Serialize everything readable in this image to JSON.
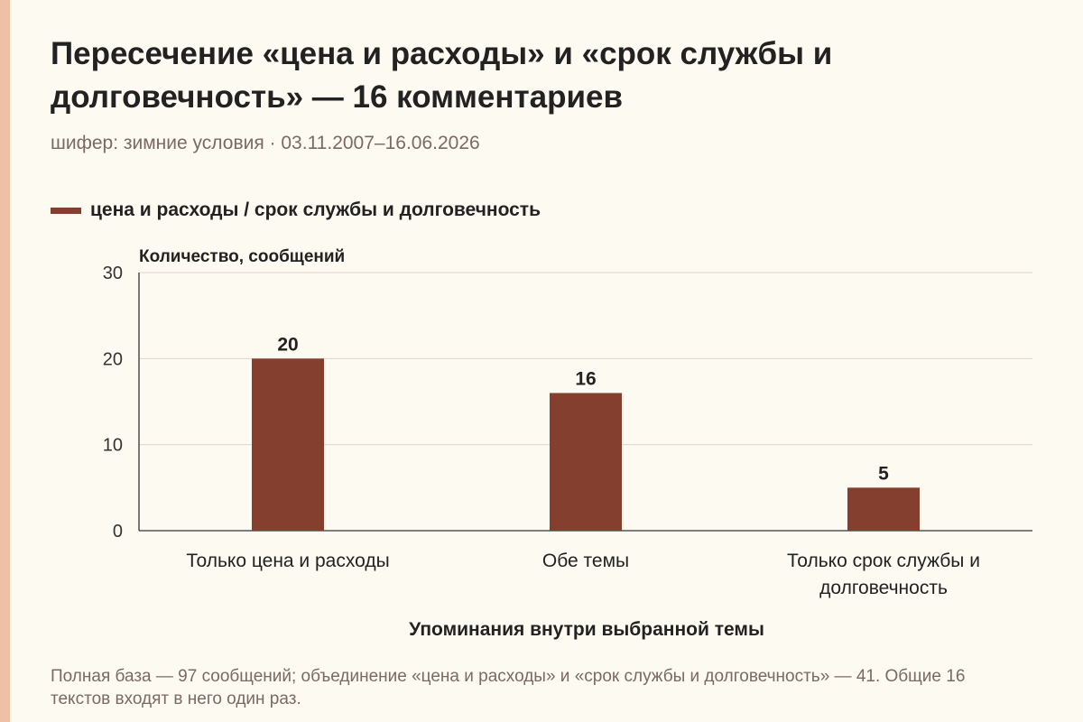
{
  "title": "Пересечение «цена и расходы» и «срок службы и долговечность» — 16 комментариев",
  "subtitle": "шифер: зимние условия · 03.11.2007–16.06.2026",
  "footnote": "Полная база — 97 сообщений; объединение «цена и расходы» и «срок службы и долговечность» — 41. Общие 16 текстов входят в него один раз.",
  "colors": {
    "bar": "#843f2f",
    "accent_strip": "#eec0a6",
    "background": "#fdfaf1"
  },
  "chart_data": {
    "type": "bar",
    "categories": [
      [
        "Только цена и расходы"
      ],
      [
        "Обе темы"
      ],
      [
        "Только срок службы и",
        "долговечность"
      ]
    ],
    "series": [
      {
        "name": "цена и расходы / срок службы и долговечность",
        "values": [
          20,
          16,
          5
        ]
      }
    ],
    "xlabel": "Упоминания внутри выбранной темы",
    "ylabel": "Количество, сообщений",
    "ylim": [
      0,
      30
    ],
    "yticks": [
      0,
      10,
      20,
      30
    ],
    "grid": true,
    "legend": "top-left",
    "data_labels": true
  }
}
